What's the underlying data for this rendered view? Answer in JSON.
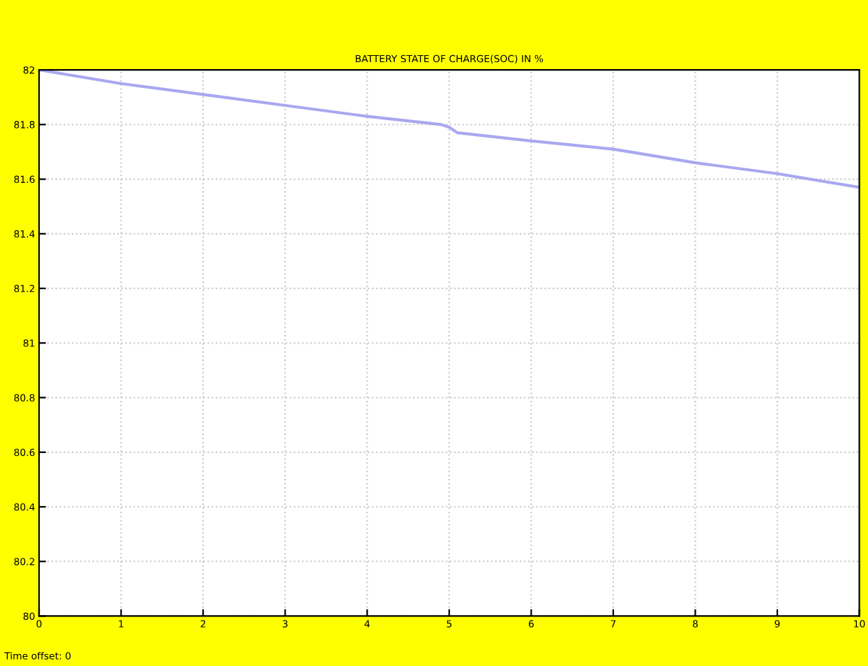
{
  "chart_data": {
    "type": "line",
    "title": "BATTERY STATE OF CHARGE(SOC) IN %",
    "x": [
      0,
      1,
      2,
      3,
      4,
      4.9,
      5.0,
      5.1,
      6,
      7,
      8,
      9,
      10
    ],
    "series": [
      {
        "color": "#a8a8f0",
        "values": [
          82,
          81.95,
          81.91,
          81.87,
          81.83,
          81.8,
          81.79,
          81.77,
          81.74,
          81.71,
          81.66,
          81.62,
          81.57
        ]
      }
    ],
    "xlim": [
      0,
      10
    ],
    "xticks": [
      0,
      1,
      2,
      3,
      4,
      5,
      6,
      7,
      8,
      9,
      10
    ],
    "ylim": [
      80,
      82
    ],
    "yticks": [
      80,
      80.2,
      80.4,
      80.6,
      80.8,
      81,
      81.2,
      81.4,
      81.6,
      81.8,
      82
    ],
    "grid": true,
    "annotations": [
      "Time offset: 0"
    ]
  }
}
